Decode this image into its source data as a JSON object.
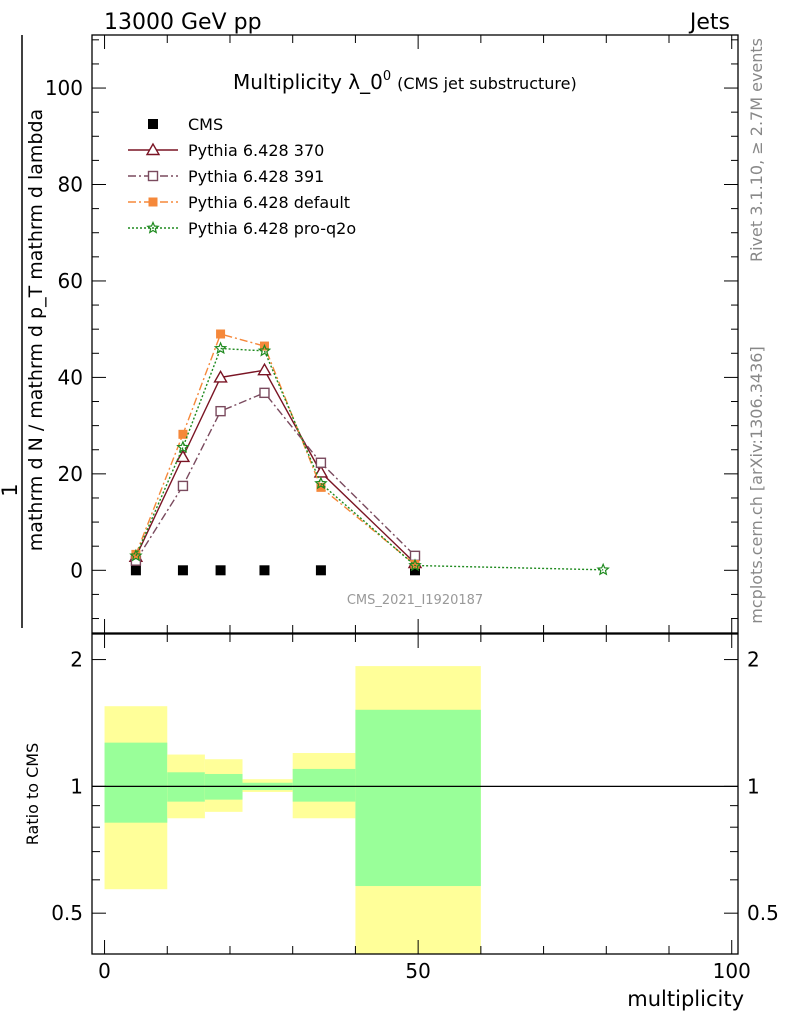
{
  "header": {
    "left": "13000 GeV pp",
    "right": "Jets"
  },
  "side_labels": {
    "rivet": "Rivet 3.1.10, ≥ 2.7M events",
    "mcplots": "mcplots.cern.ch [arXiv:1306.3436]"
  },
  "watermark": "CMS_2021_I1920187",
  "chart_data": {
    "type": "line",
    "title_main": "Multiplicity λ_0",
    "title_sup": "0",
    "title_sub": "(CMS jet substructure)",
    "ylabel_main": "mathrm d N / mathrm d p_T mathrm d lambda",
    "ylabel_ratio": "Ratio to CMS",
    "xlabel": "multiplicity",
    "xlim": [
      -2,
      101
    ],
    "ylim": [
      -13,
      111
    ],
    "ratio_ylim": [
      0.4,
      2.3
    ],
    "ratio_log": true,
    "x_ticks": [
      "0",
      "50",
      "100"
    ],
    "y_ticks": [
      "0",
      "20",
      "40",
      "60",
      "80",
      "100"
    ],
    "ratio_ticks": [
      "0.5",
      "1",
      "2"
    ],
    "legend_position": "top-left",
    "series": [
      {
        "name": "CMS",
        "color": "#000000",
        "marker": "square-filled",
        "line": "none",
        "x": [
          5,
          12.5,
          18.5,
          25.5,
          34.5,
          49.5
        ],
        "y": [
          0,
          0,
          0,
          0,
          0,
          0
        ]
      },
      {
        "name": "Pythia 6.428 370",
        "color": "#7a1424",
        "marker": "triangle-open",
        "line": "solid",
        "x": [
          5,
          12.5,
          18.5,
          25.5,
          34.5,
          49.5
        ],
        "y": [
          2.8,
          23.5,
          40,
          41.5,
          20.3,
          1.5
        ]
      },
      {
        "name": "Pythia 6.428 391",
        "color": "#7a4a5e",
        "marker": "square-open",
        "line": "dashdot",
        "x": [
          5,
          12.5,
          18.5,
          25.5,
          34.5,
          49.5
        ],
        "y": [
          2,
          17.5,
          33,
          36.8,
          22.3,
          3
        ]
      },
      {
        "name": "Pythia 6.428 default",
        "color": "#f5883a",
        "marker": "square-filled",
        "line": "dashdot",
        "x": [
          5,
          12.5,
          18.5,
          25.5,
          34.5,
          49.5
        ],
        "y": [
          3.3,
          28.2,
          49,
          46.5,
          17.2,
          1.2
        ]
      },
      {
        "name": "Pythia 6.428 pro-q2o",
        "color": "#1f8a1f",
        "marker": "star",
        "line": "dotted",
        "x": [
          5,
          12.5,
          18.5,
          25.5,
          34.5,
          49.5,
          79.5
        ],
        "y": [
          3,
          25.5,
          46,
          45.5,
          18,
          1,
          0.1
        ]
      }
    ],
    "ratio_bands": [
      {
        "x0": 0,
        "x1": 10,
        "green": [
          0.82,
          1.27
        ],
        "yellow": [
          0.57,
          1.55
        ]
      },
      {
        "x0": 10,
        "x1": 16,
        "green": [
          0.92,
          1.08
        ],
        "yellow": [
          0.84,
          1.19
        ]
      },
      {
        "x0": 16,
        "x1": 22,
        "green": [
          0.93,
          1.07
        ],
        "yellow": [
          0.87,
          1.16
        ]
      },
      {
        "x0": 22,
        "x1": 30,
        "green": [
          0.98,
          1.02
        ],
        "yellow": [
          0.97,
          1.04
        ]
      },
      {
        "x0": 30,
        "x1": 40,
        "green": [
          0.92,
          1.1
        ],
        "yellow": [
          0.84,
          1.2
        ]
      },
      {
        "x0": 40,
        "x1": 60,
        "green": [
          0.58,
          1.52
        ],
        "yellow": [
          0.4,
          1.93
        ]
      }
    ]
  }
}
